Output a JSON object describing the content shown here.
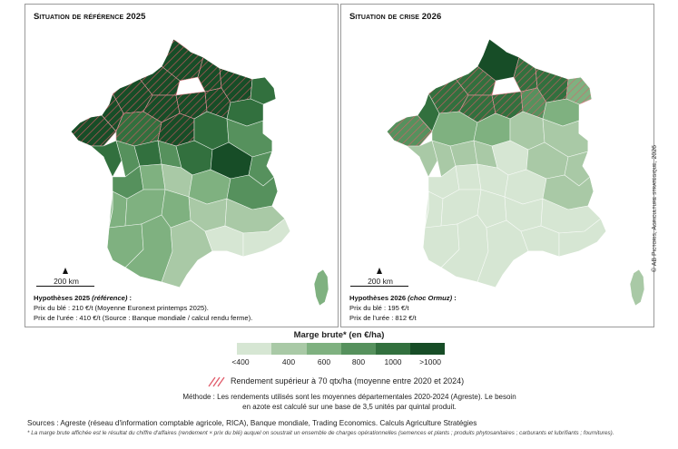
{
  "left_panel": {
    "title": "Situation de référence 2025",
    "scale_label": "200 km",
    "hypotheses_title": "Hypothèses 2025 ",
    "hypotheses_title_em": "(référence)",
    "hypotheses_title_end": " :",
    "hypotheses_lines": [
      "Prix du blé : 210 €/t (Moyenne Euronext printemps 2025).",
      "Prix de l'urée : 410 €/t (Source : Banque mondiale / calcul rendu ferme)."
    ]
  },
  "right_panel": {
    "title": "Situation de crise 2026",
    "scale_label": "200 km",
    "hypotheses_title": "Hypothèses 2026 ",
    "hypotheses_title_em": "(choc Ormuz)",
    "hypotheses_title_end": " :",
    "hypotheses_lines": [
      "Prix du blé : 195 €/t",
      "Prix de l'urée : 812 €/t"
    ]
  },
  "copyright": "© AB Pictoris, Agriculture stratégique, 2026",
  "legend": {
    "title": "Marge brute* (en €/ha)",
    "classes": [
      {
        "label": "<400",
        "color": "#d6e6d3"
      },
      {
        "label": "400",
        "color": "#a9c9a6"
      },
      {
        "label": "600",
        "color": "#7fb180"
      },
      {
        "label": "800",
        "color": "#56915d"
      },
      {
        "label": "1000",
        "color": "#32703e"
      },
      {
        "label": ">1000",
        "color": "#174d27"
      }
    ],
    "tick_labels": [
      "<400",
      "400",
      "600",
      "800",
      "1000",
      ">1000"
    ],
    "hatch_color": "#e05a6a",
    "hatch_label": "Rendement supérieur à 70 qtx/ha (moyenne entre 2020 et 2024)"
  },
  "method_note": "Méthode : Les rendements utilisés sont les moyennes départementales 2020-2024 (Agreste). Le besoin en azote est calculé sur une base de 3,5 unités par quintal produit.",
  "sources": "Sources : Agreste (réseau d'information comptable agricole, RICA), Banque mondiale, Trading Economics. Calculs Agriculture Stratégies",
  "footnote": "* La marge brute affichée est le résultat du chiffre d'affaires (rendement × prix du blé) auquel on soustrait un ensemble de charges opérationnelles (semences et plants ; produits phytosanitaires ; carburants et lubrifiants ; fournitures)."
}
